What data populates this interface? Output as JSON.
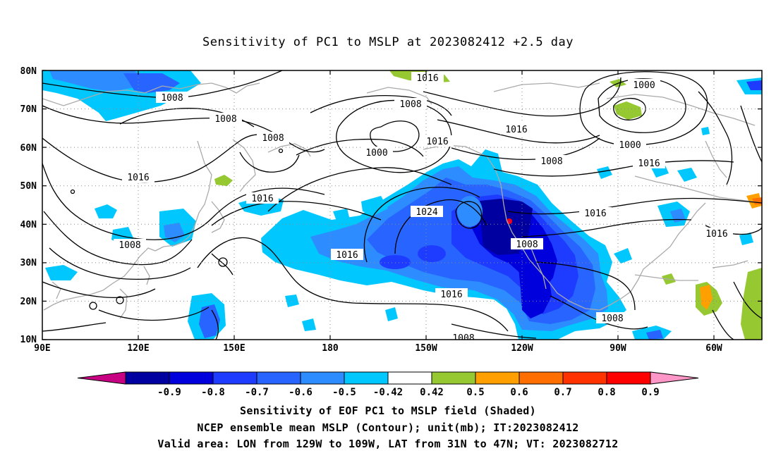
{
  "title": "Sensitivity of PC1 to MSLP at 2023082412 +2.5 day",
  "lat_labels": [
    "80N",
    "70N",
    "60N",
    "50N",
    "40N",
    "30N",
    "20N",
    "10N"
  ],
  "lon_labels": [
    "90E",
    "120E",
    "150E",
    "180",
    "150W",
    "120W",
    "90W",
    "60W"
  ],
  "colorbar": {
    "labels": [
      "-0.9",
      "-0.8",
      "-0.7",
      "-0.6",
      "-0.5",
      "-0.42",
      "0.42",
      "0.5",
      "0.6",
      "0.7",
      "0.8",
      "0.9"
    ],
    "colors": [
      "#c80082",
      "#0000a0",
      "#0000dc",
      "#1e3cff",
      "#2864ff",
      "#2d8cff",
      "#00c8ff",
      "#ffffff",
      "#96c832",
      "#ffa000",
      "#ff6e00",
      "#ff3200",
      "#ff0000",
      "#ff96c8"
    ]
  },
  "contour_labels": [
    "1016",
    "1008",
    "1008",
    "1008",
    "1016",
    "1008",
    "1000",
    "1016",
    "1016",
    "1008",
    "1016",
    "1024",
    "1000",
    "1000",
    "1016",
    "1008",
    "1016",
    "1008",
    "1016",
    "1016",
    "1016",
    "1008",
    "1008"
  ],
  "captions": {
    "line1": "Sensitivity of EOF PC1 to MSLP field (Shaded)",
    "line2": "NCEP ensemble mean MSLP (Contour); unit(mb); IT:2023082412",
    "line3": "Valid area: LON from 129W to 109W, LAT from 31N to 47N; VT: 2023082712"
  }
}
